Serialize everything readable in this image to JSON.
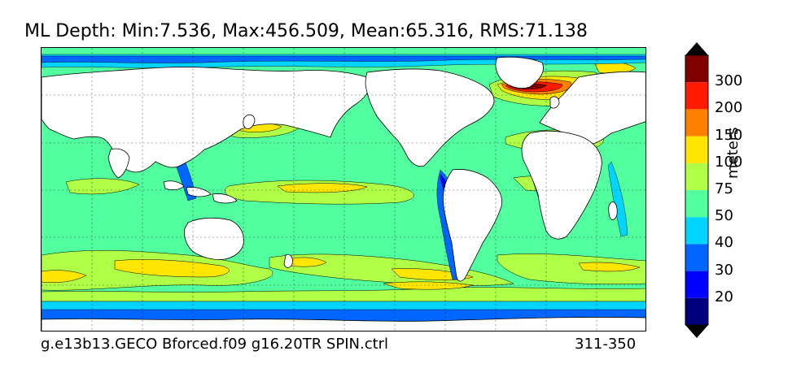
{
  "title": "ML Depth: Min:7.536, Max:456.509, Mean:65.316, RMS:71.138",
  "footer": {
    "case_name": "g.e13b13.GECO Bforced.f09 g16.20TR SPIN.ctrl",
    "years": "311-350"
  },
  "colorbar": {
    "unit": "meters",
    "levels": [
      "20",
      "30",
      "40",
      "50",
      "75",
      "100",
      "150",
      "200",
      "300"
    ],
    "colors": [
      "#00007f",
      "#0000ff",
      "#0066ff",
      "#00d4ff",
      "#52ff9f",
      "#b0ff46",
      "#ffe600",
      "#ff7f00",
      "#ff1a00",
      "#800000"
    ],
    "extend": "both"
  },
  "map": {
    "land_color": "#ffffff",
    "ocean_base_color": "#52ff9f",
    "grid": "dashed"
  }
}
